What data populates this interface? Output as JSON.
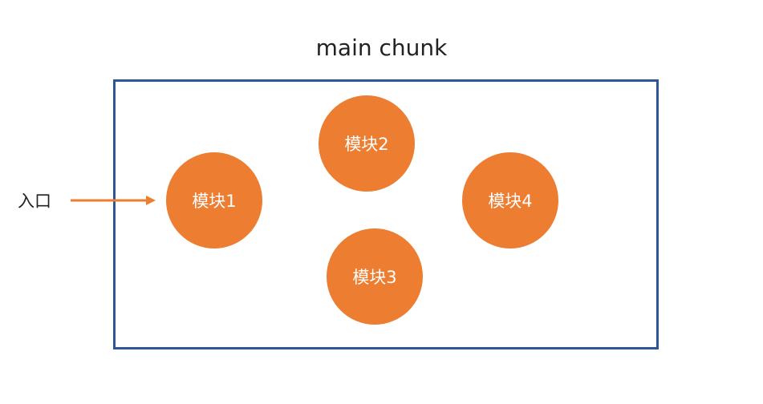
{
  "title": "main chunk",
  "entry_label": "入口",
  "colors": {
    "module_fill": "#ed7d31",
    "box_border": "#2f5597",
    "arrow": "#ed7d31"
  },
  "modules": [
    {
      "label": "模块1"
    },
    {
      "label": "模块2"
    },
    {
      "label": "模块3"
    },
    {
      "label": "模块4"
    }
  ]
}
